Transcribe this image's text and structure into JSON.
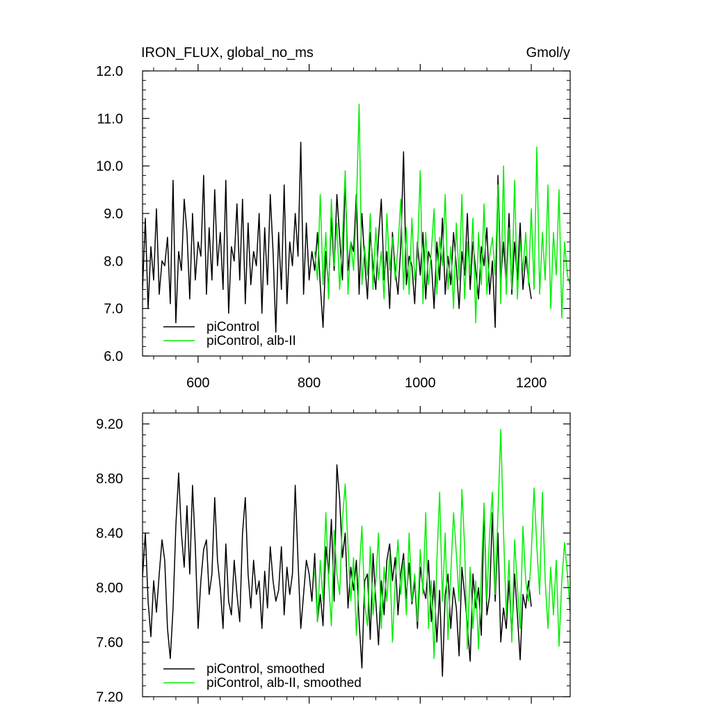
{
  "header": {
    "title": "IRON_FLUX, global_no_ms",
    "units": "Gmol/y"
  },
  "colors": {
    "picontrol": "#000000",
    "alb_ii": "#00ee00",
    "axes": "#000000",
    "background": "#ffffff"
  },
  "chart_data": [
    {
      "type": "line",
      "title": "IRON_FLUX, global_no_ms",
      "units_label": "Gmol/y",
      "xlabel": "",
      "ylabel": "",
      "xlim": [
        500,
        1270
      ],
      "ylim": [
        6.0,
        12.0
      ],
      "xticks": [
        600,
        800,
        1000,
        1200
      ],
      "xtick_labels": [
        "600",
        "800",
        "1000",
        "1200"
      ],
      "yticks": [
        6.0,
        7.0,
        8.0,
        9.0,
        10.0,
        11.0,
        12.0
      ],
      "ytick_labels": [
        "6.0",
        "7.0",
        "8.0",
        "9.0",
        "10.0",
        "11.0",
        "12.0"
      ],
      "grid": false,
      "legend_position": "bottom-left",
      "series": [
        {
          "name": "piControl",
          "color": "#000000",
          "x": [
            500,
            505,
            510,
            515,
            520,
            525,
            530,
            535,
            540,
            545,
            550,
            555,
            560,
            565,
            570,
            575,
            580,
            585,
            590,
            595,
            600,
            605,
            610,
            615,
            620,
            625,
            630,
            635,
            640,
            645,
            650,
            655,
            660,
            665,
            670,
            675,
            680,
            685,
            690,
            695,
            700,
            705,
            710,
            715,
            720,
            725,
            730,
            735,
            740,
            745,
            750,
            755,
            760,
            765,
            770,
            775,
            780,
            785,
            790,
            795,
            800,
            805,
            810,
            815,
            820,
            825,
            830,
            835,
            840,
            845,
            850,
            855,
            860,
            865,
            870,
            875,
            880,
            885,
            890,
            895,
            900,
            905,
            910,
            915,
            920,
            925,
            930,
            935,
            940,
            945,
            950,
            955,
            960,
            965,
            970,
            975,
            980,
            985,
            990,
            995,
            1000,
            1005,
            1010,
            1015,
            1020,
            1025,
            1030,
            1035,
            1040,
            1045,
            1050,
            1055,
            1060,
            1065,
            1070,
            1075,
            1080,
            1085,
            1090,
            1095,
            1100,
            1105,
            1110,
            1115,
            1120,
            1125,
            1130,
            1135,
            1140,
            1145,
            1150,
            1155,
            1160,
            1165,
            1170,
            1175,
            1180,
            1185,
            1190,
            1195,
            1200
          ],
          "y": [
            7.4,
            8.9,
            7.0,
            8.3,
            7.6,
            9.1,
            7.3,
            8.0,
            7.9,
            8.5,
            7.1,
            9.7,
            6.7,
            8.2,
            7.8,
            9.3,
            8.6,
            7.2,
            9.0,
            7.6,
            8.4,
            8.1,
            9.8,
            7.3,
            8.7,
            7.6,
            9.5,
            7.9,
            8.6,
            7.4,
            9.7,
            6.9,
            8.3,
            8.0,
            9.2,
            7.6,
            9.3,
            7.1,
            8.8,
            7.5,
            8.2,
            7.9,
            9.0,
            6.9,
            8.7,
            7.5,
            9.4,
            8.2,
            6.5,
            8.6,
            7.4,
            9.6,
            7.1,
            8.4,
            7.9,
            9.0,
            8.1,
            10.5,
            7.3,
            8.8,
            7.6,
            8.2,
            7.8,
            8.6,
            7.5,
            6.6,
            8.2,
            7.4,
            8.9,
            7.8,
            9.4,
            8.5,
            7.6,
            9.7,
            7.8,
            8.4,
            8.2,
            9.4,
            7.3,
            9.0,
            8.0,
            7.2,
            8.6,
            7.9,
            7.4,
            8.5,
            9.3,
            7.6,
            8.2,
            7.0,
            8.6,
            7.8,
            7.3,
            8.3,
            10.3,
            7.5,
            8.1,
            7.9,
            7.1,
            8.4,
            7.7,
            8.6,
            7.2,
            8.2,
            8.0,
            7.0,
            8.4,
            7.6,
            8.9,
            7.3,
            8.1,
            7.5,
            8.6,
            7.9,
            7.0,
            8.2,
            7.7,
            9.0,
            7.4,
            8.4,
            7.8,
            7.2,
            8.3,
            7.9,
            8.7,
            7.3,
            8.0,
            6.6,
            9.8,
            7.6,
            8.4,
            7.5,
            9.0,
            7.3,
            8.4,
            7.6,
            8.8,
            7.4,
            8.1,
            7.6,
            7.2
          ]
        },
        {
          "name": "piControl, alb-II",
          "color": "#00ee00",
          "x": [
            810,
            815,
            820,
            825,
            830,
            835,
            840,
            845,
            850,
            855,
            860,
            865,
            870,
            875,
            880,
            885,
            890,
            895,
            900,
            905,
            910,
            915,
            920,
            925,
            930,
            935,
            940,
            945,
            950,
            955,
            960,
            965,
            970,
            975,
            980,
            985,
            990,
            995,
            1000,
            1005,
            1010,
            1015,
            1020,
            1025,
            1030,
            1035,
            1040,
            1045,
            1050,
            1055,
            1060,
            1065,
            1070,
            1075,
            1080,
            1085,
            1090,
            1095,
            1100,
            1105,
            1110,
            1115,
            1120,
            1125,
            1130,
            1135,
            1140,
            1145,
            1150,
            1155,
            1160,
            1165,
            1170,
            1175,
            1180,
            1185,
            1190,
            1195,
            1200,
            1205,
            1210,
            1215,
            1220,
            1225,
            1230,
            1235,
            1240,
            1245,
            1250,
            1255,
            1260,
            1265,
            1270
          ],
          "y": [
            8.2,
            7.6,
            9.4,
            7.5,
            8.6,
            7.2,
            9.3,
            7.9,
            8.8,
            7.4,
            8.5,
            9.9,
            7.3,
            8.4,
            7.8,
            9.1,
            11.3,
            7.5,
            8.3,
            7.7,
            9.0,
            7.4,
            8.7,
            7.6,
            8.2,
            7.2,
            9.0,
            7.8,
            8.5,
            7.6,
            8.3,
            9.3,
            7.4,
            8.7,
            7.3,
            8.9,
            7.6,
            8.1,
            9.9,
            7.1,
            8.6,
            7.5,
            8.2,
            9.1,
            7.3,
            8.5,
            7.9,
            9.4,
            7.4,
            8.3,
            7.0,
            8.8,
            7.6,
            9.4,
            7.2,
            8.4,
            7.7,
            8.9,
            6.7,
            8.6,
            7.5,
            9.2,
            7.3,
            8.1,
            8.5,
            7.7,
            9.6,
            7.1,
            10.0,
            7.3,
            8.7,
            7.4,
            9.7,
            7.2,
            8.4,
            7.8,
            8.6,
            7.5,
            9.1,
            7.4,
            10.4,
            7.3,
            8.6,
            7.6,
            9.6,
            7.0,
            8.6,
            7.7,
            9.5,
            6.8,
            8.4,
            7.7,
            7.5
          ]
        }
      ]
    },
    {
      "type": "line",
      "title": "",
      "xlabel": "",
      "ylabel": "",
      "xlim": [
        500,
        1270
      ],
      "ylim": [
        7.2,
        9.28
      ],
      "xticks": [
        600,
        800,
        1000,
        1200
      ],
      "yticks": [
        7.2,
        7.6,
        8.0,
        8.4,
        8.8,
        9.2
      ],
      "ytick_labels": [
        "7.20",
        "7.60",
        "8.00",
        "8.40",
        "8.80",
        "9.20"
      ],
      "grid": false,
      "legend_position": "bottom-left",
      "series": [
        {
          "name": "piControl, smoothed",
          "color": "#000000",
          "x": [
            500,
            505,
            510,
            515,
            520,
            525,
            530,
            535,
            540,
            545,
            550,
            555,
            560,
            565,
            570,
            575,
            580,
            585,
            590,
            595,
            600,
            605,
            610,
            615,
            620,
            625,
            630,
            635,
            640,
            645,
            650,
            655,
            660,
            665,
            670,
            675,
            680,
            685,
            690,
            695,
            700,
            705,
            710,
            715,
            720,
            725,
            730,
            735,
            740,
            745,
            750,
            755,
            760,
            765,
            770,
            775,
            780,
            785,
            790,
            795,
            800,
            805,
            810,
            815,
            820,
            825,
            830,
            835,
            840,
            845,
            850,
            855,
            860,
            865,
            870,
            875,
            880,
            885,
            890,
            895,
            900,
            905,
            910,
            915,
            920,
            925,
            930,
            935,
            940,
            945,
            950,
            955,
            960,
            965,
            970,
            975,
            980,
            985,
            990,
            995,
            1000,
            1005,
            1010,
            1015,
            1020,
            1025,
            1030,
            1035,
            1040,
            1045,
            1050,
            1055,
            1060,
            1065,
            1070,
            1075,
            1080,
            1085,
            1090,
            1095,
            1100,
            1105,
            1110,
            1115,
            1120,
            1125,
            1130,
            1135,
            1140,
            1145,
            1150,
            1155,
            1160,
            1165,
            1170,
            1175,
            1180,
            1185,
            1190,
            1195,
            1200
          ],
          "y": [
            8.08,
            8.4,
            7.9,
            7.64,
            8.05,
            7.82,
            8.1,
            8.35,
            8.2,
            7.7,
            7.48,
            7.85,
            8.45,
            8.84,
            8.4,
            8.15,
            8.6,
            8.1,
            8.75,
            8.3,
            7.7,
            8.05,
            8.28,
            8.35,
            7.95,
            8.1,
            8.66,
            8.2,
            8.0,
            7.7,
            8.32,
            7.9,
            7.8,
            8.2,
            7.95,
            7.75,
            8.4,
            8.66,
            8.1,
            7.85,
            8.2,
            7.95,
            8.05,
            7.7,
            8.12,
            7.85,
            8.3,
            8.05,
            7.9,
            7.98,
            8.3,
            7.8,
            8.15,
            7.95,
            8.1,
            8.75,
            8.2,
            7.7,
            7.95,
            8.2,
            8.1,
            7.9,
            8.25,
            7.75,
            7.95,
            7.72,
            8.3,
            8.1,
            8.5,
            7.9,
            8.9,
            8.65,
            8.22,
            8.4,
            7.85,
            8.15,
            7.98,
            8.2,
            7.75,
            7.41,
            8.05,
            8.1,
            7.62,
            8.25,
            7.9,
            7.58,
            8.05,
            7.8,
            8.2,
            8.32,
            8.05,
            8.22,
            7.8,
            8.1,
            8.25,
            7.92,
            8.18,
            7.88,
            8.05,
            7.7,
            8.15,
            8.0,
            7.92,
            8.2,
            7.75,
            8.05,
            7.6,
            7.98,
            7.35,
            7.95,
            8.1,
            7.7,
            8.0,
            7.85,
            7.5,
            8.15,
            7.95,
            7.72,
            7.46,
            8.1,
            7.85,
            8.0,
            7.65,
            8.6,
            7.8,
            7.94,
            8.55,
            7.9,
            8.4,
            7.6,
            7.85,
            7.7,
            8.05,
            7.65,
            8.1,
            7.8,
            7.47,
            7.95,
            7.85,
            8.05,
            7.86
          ]
        },
        {
          "name": "piControl, alb-II, smoothed",
          "color": "#00ee00",
          "x": [
            810,
            815,
            820,
            825,
            830,
            835,
            840,
            845,
            850,
            855,
            860,
            865,
            870,
            875,
            880,
            885,
            890,
            895,
            900,
            905,
            910,
            915,
            920,
            925,
            930,
            935,
            940,
            945,
            950,
            955,
            960,
            965,
            970,
            975,
            980,
            985,
            990,
            995,
            1000,
            1005,
            1010,
            1015,
            1020,
            1025,
            1030,
            1035,
            1040,
            1045,
            1050,
            1055,
            1060,
            1065,
            1070,
            1075,
            1080,
            1085,
            1090,
            1095,
            1100,
            1105,
            1110,
            1115,
            1120,
            1125,
            1130,
            1135,
            1140,
            1145,
            1150,
            1155,
            1160,
            1165,
            1170,
            1175,
            1180,
            1185,
            1190,
            1195,
            1200,
            1205,
            1210,
            1215,
            1220,
            1225,
            1230,
            1235,
            1240,
            1245,
            1250,
            1255,
            1260,
            1265,
            1270
          ],
          "y": [
            8.12,
            7.75,
            8.2,
            7.9,
            8.55,
            8.05,
            7.72,
            8.42,
            8.1,
            7.95,
            8.5,
            8.76,
            8.3,
            7.9,
            8.22,
            7.65,
            8.1,
            8.45,
            7.88,
            7.72,
            8.3,
            7.8,
            8.05,
            8.4,
            7.7,
            8.15,
            7.9,
            8.25,
            7.6,
            8.05,
            8.35,
            7.95,
            8.2,
            7.8,
            8.4,
            7.9,
            8.1,
            7.75,
            8.28,
            7.95,
            8.55,
            7.7,
            8.05,
            7.48,
            8.2,
            8.7,
            7.9,
            8.4,
            7.62,
            8.1,
            8.55,
            8.25,
            7.9,
            8.72,
            8.3,
            7.55,
            8.15,
            7.7,
            8.05,
            7.55,
            8.1,
            8.62,
            7.9,
            8.4,
            8.7,
            7.95,
            8.55,
            9.16,
            8.4,
            7.8,
            8.2,
            7.6,
            8.35,
            8.0,
            7.7,
            8.45,
            8.05,
            7.9,
            8.25,
            8.73,
            8.3,
            7.95,
            8.7,
            8.05,
            7.7,
            8.15,
            7.8,
            8.2,
            7.57,
            8.05,
            8.33,
            8.1,
            7.82
          ]
        }
      ]
    }
  ]
}
